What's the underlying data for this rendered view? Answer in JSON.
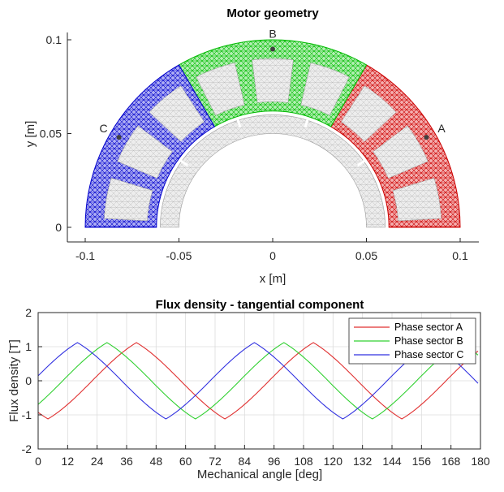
{
  "chart_data": [
    {
      "type": "diagram",
      "title": "Motor geometry",
      "xlabel": "x [m]",
      "ylabel": "y [m]",
      "xlim": [
        -0.11,
        0.11
      ],
      "ylim": [
        -0.005,
        0.105
      ],
      "xticks": [
        -0.1,
        -0.05,
        0,
        0.05,
        0.1
      ],
      "xticklabels": [
        "-0.1",
        "-0.05",
        "0",
        "0.05",
        "0.1"
      ],
      "yticks": [
        0,
        0.05,
        0.1
      ],
      "yticklabels": [
        "0",
        "0.05",
        "0.1"
      ],
      "grid": false,
      "stator": {
        "r_inner": 0.062,
        "r_outer": 0.1,
        "slots": 9
      },
      "rotor": {
        "r_inner": 0.05,
        "r_outer": 0.06
      },
      "sectors": [
        {
          "name": "A",
          "color": "#cc0000",
          "angle_start": 0,
          "angle_end": 60
        },
        {
          "name": "B",
          "color": "#00bb00",
          "angle_start": 60,
          "angle_end": 120
        },
        {
          "name": "C",
          "color": "#0000cc",
          "angle_start": 120,
          "angle_end": 180
        }
      ],
      "markers": [
        {
          "label": "A",
          "x": 0.082,
          "y": 0.048
        },
        {
          "label": "B",
          "x": 0.0,
          "y": 0.095
        },
        {
          "label": "C",
          "x": -0.082,
          "y": 0.048
        }
      ]
    },
    {
      "type": "line",
      "title": "Flux density - tangential component",
      "xlabel": "Mechanical angle [deg]",
      "ylabel": "Flux density [T]",
      "xlim": [
        0,
        180
      ],
      "ylim": [
        -2,
        2
      ],
      "xticks": [
        0,
        12,
        24,
        36,
        48,
        60,
        72,
        84,
        96,
        108,
        120,
        132,
        144,
        156,
        168,
        180
      ],
      "yticks": [
        -2,
        -1,
        0,
        1,
        2
      ],
      "grid": true,
      "legend_position": "top-right",
      "series": [
        {
          "name": "Phase sector A",
          "color": "#e03030",
          "amplitude": 1.12,
          "period_deg": 72,
          "peak_deg": 40,
          "x_end": 179
        },
        {
          "name": "Phase sector B",
          "color": "#30d030",
          "amplitude": 1.12,
          "period_deg": 72,
          "peak_deg": 28,
          "x_end": 179
        },
        {
          "name": "Phase sector C",
          "color": "#3030e0",
          "amplitude": 1.12,
          "period_deg": 72,
          "peak_deg": 16,
          "x_end": 179
        }
      ]
    }
  ]
}
